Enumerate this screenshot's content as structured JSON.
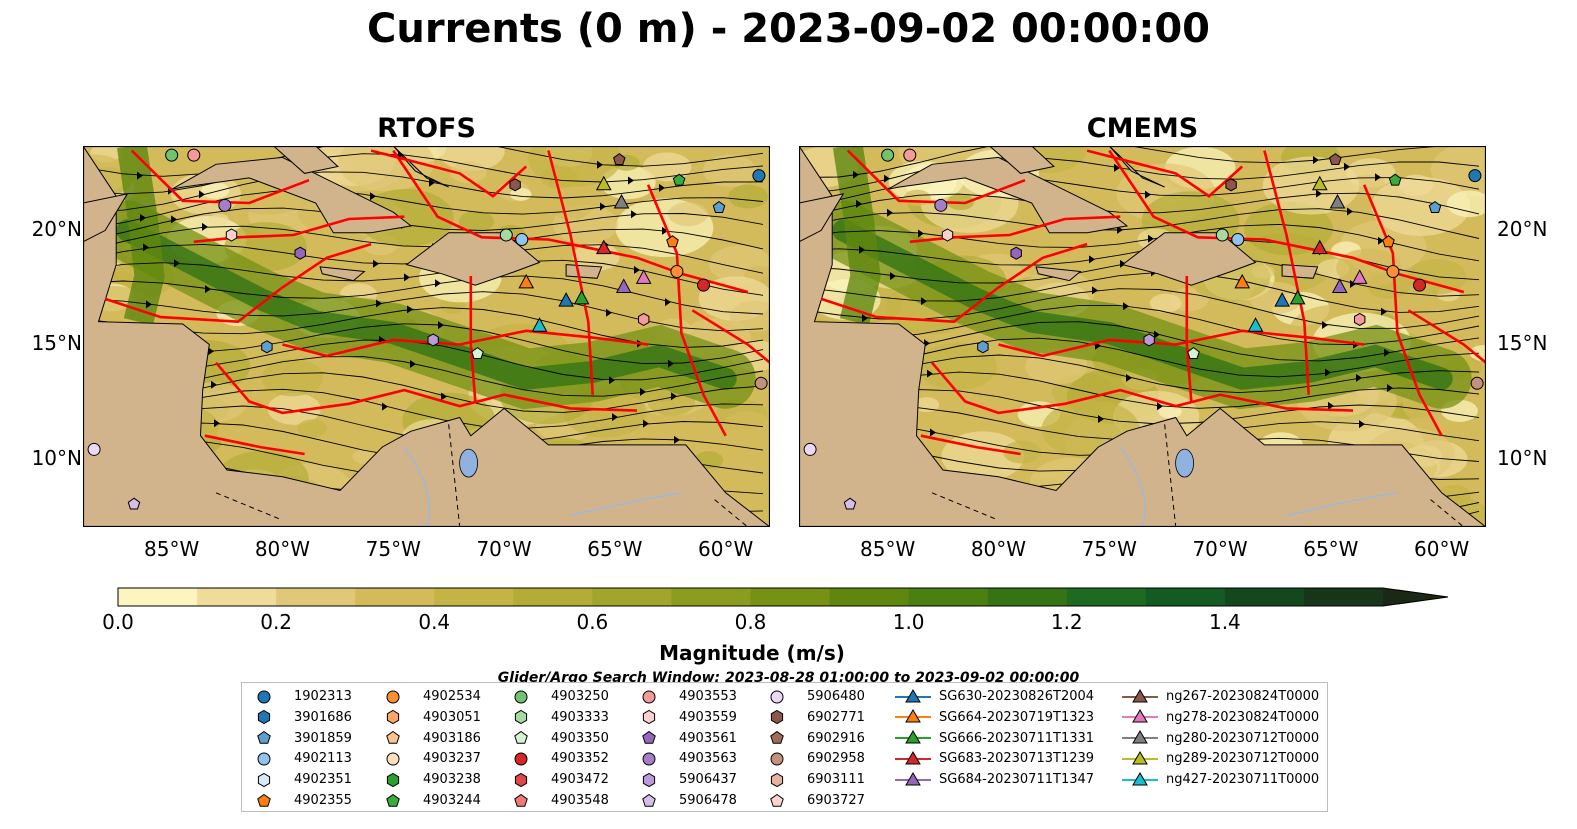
{
  "figure": {
    "title": "Currents (0 m) - 2023-09-02 00:00:00"
  },
  "chart_data": [
    {
      "type": "heatmap",
      "panel": "left",
      "title": "RTOFS",
      "variable": "surface current magnitude with streamlines",
      "x_ticks": [
        "85°W",
        "80°W",
        "75°W",
        "70°W",
        "65°W",
        "60°W"
      ],
      "y_ticks": [
        "20°N",
        "15°N",
        "10°N"
      ],
      "xlim": [
        -89,
        -58
      ],
      "ylim": [
        7,
        23.7
      ],
      "land_color": "#d2b48c",
      "boundary_color": "#ff0000"
    },
    {
      "type": "heatmap",
      "panel": "right",
      "title": "CMEMS",
      "variable": "surface current magnitude with streamlines",
      "x_ticks": [
        "85°W",
        "80°W",
        "75°W",
        "70°W",
        "65°W",
        "60°W"
      ],
      "y_ticks": [
        "20°N",
        "15°N",
        "10°N"
      ],
      "xlim": [
        -89,
        -58
      ],
      "ylim": [
        7,
        23.7
      ],
      "land_color": "#d2b48c",
      "boundary_color": "#ff0000"
    }
  ],
  "colorbar": {
    "label": "Magnitude (m/s)",
    "ticks": [
      "0.0",
      "0.2",
      "0.4",
      "0.6",
      "0.8",
      "1.0",
      "1.2",
      "1.4"
    ],
    "range": [
      0,
      1.6
    ],
    "extend": "max",
    "colors": [
      "#fcf5bf",
      "#efdc9a",
      "#e0c878",
      "#d3bb5b",
      "#c4b446",
      "#b3ad36",
      "#a1a62a",
      "#8c9c1f",
      "#769114",
      "#5f870f",
      "#4a7f12",
      "#357414",
      "#1f6a21",
      "#145a23",
      "#12481c",
      "#173518",
      "#1a2916"
    ]
  },
  "legend": {
    "title": "Glider/Argo Search Window: 2023-08-28 01:00:00 to 2023-09-02 00:00:00",
    "columns": [
      [
        {
          "label": "1902313",
          "marker": "circle",
          "color": "#1f77b4"
        },
        {
          "label": "3901686",
          "marker": "hexagon",
          "color": "#1f77b4"
        },
        {
          "label": "3901859",
          "marker": "pentagon",
          "color": "#5f9fd0"
        },
        {
          "label": "4902113",
          "marker": "circle",
          "color": "#8fc4ee"
        },
        {
          "label": "4902351",
          "marker": "hexagon",
          "color": "#d5ebfa"
        },
        {
          "label": "4902355",
          "marker": "pentagon",
          "color": "#ff7f0e"
        }
      ],
      [
        {
          "label": "4902534",
          "marker": "circle",
          "color": "#ff8f33"
        },
        {
          "label": "4903051",
          "marker": "hexagon",
          "color": "#ffa866"
        },
        {
          "label": "4903186",
          "marker": "pentagon",
          "color": "#ffc38f"
        },
        {
          "label": "4903237",
          "marker": "circle",
          "color": "#ffe0bc"
        },
        {
          "label": "4903238",
          "marker": "hexagon",
          "color": "#2ca02c"
        },
        {
          "label": "4903244",
          "marker": "pentagon",
          "color": "#39ac39"
        }
      ],
      [
        {
          "label": "4903250",
          "marker": "circle",
          "color": "#6fc46f"
        },
        {
          "label": "4903333",
          "marker": "hexagon",
          "color": "#a5dba1"
        },
        {
          "label": "4903350",
          "marker": "pentagon",
          "color": "#d7f2d2"
        },
        {
          "label": "4903352",
          "marker": "circle",
          "color": "#d62728"
        },
        {
          "label": "4903472",
          "marker": "hexagon",
          "color": "#e0474a"
        },
        {
          "label": "4903548",
          "marker": "pentagon",
          "color": "#f07a7a"
        }
      ],
      [
        {
          "label": "4903553",
          "marker": "circle",
          "color": "#f59a9a"
        },
        {
          "label": "4903559",
          "marker": "hexagon",
          "color": "#fcd0cf"
        },
        {
          "label": "4903561",
          "marker": "pentagon",
          "color": "#9467bd"
        },
        {
          "label": "4903563",
          "marker": "circle",
          "color": "#a57dc9"
        },
        {
          "label": "5906437",
          "marker": "hexagon",
          "color": "#bc9ad9"
        },
        {
          "label": "5906478",
          "marker": "pentagon",
          "color": "#d3bfe8"
        }
      ],
      [
        {
          "label": "5906480",
          "marker": "circle",
          "color": "#ead8f6"
        },
        {
          "label": "6902771",
          "marker": "hexagon",
          "color": "#8c564b"
        },
        {
          "label": "6902916",
          "marker": "pentagon",
          "color": "#a26a5d"
        },
        {
          "label": "6902958",
          "marker": "circle",
          "color": "#c4917f"
        },
        {
          "label": "6903111",
          "marker": "hexagon",
          "color": "#e6b3a3"
        },
        {
          "label": "6903727",
          "marker": "pentagon",
          "color": "#fbd5cc"
        }
      ],
      [
        {
          "label": "SG630-20230826T2004",
          "marker": "triangle-line",
          "color": "#1f77b4"
        },
        {
          "label": "SG664-20230719T1323",
          "marker": "triangle-line",
          "color": "#ff7f0e"
        },
        {
          "label": "SG666-20230711T1331",
          "marker": "triangle-line",
          "color": "#2ca02c"
        },
        {
          "label": "SG683-20230713T1239",
          "marker": "triangle-line",
          "color": "#d62728"
        },
        {
          "label": "SG684-20230711T1347",
          "marker": "triangle-line",
          "color": "#9467bd"
        }
      ],
      [
        {
          "label": "ng267-20230824T0000",
          "marker": "triangle-line",
          "color": "#8c564b"
        },
        {
          "label": "ng278-20230824T0000",
          "marker": "triangle-line",
          "color": "#e377c2"
        },
        {
          "label": "ng280-20230712T0000",
          "marker": "triangle-line",
          "color": "#7f7f7f"
        },
        {
          "label": "ng289-20230712T0000",
          "marker": "triangle-line",
          "color": "#bcbd22"
        },
        {
          "label": "ng427-20230711T0000",
          "marker": "triangle-line",
          "color": "#17becf"
        }
      ]
    ]
  }
}
